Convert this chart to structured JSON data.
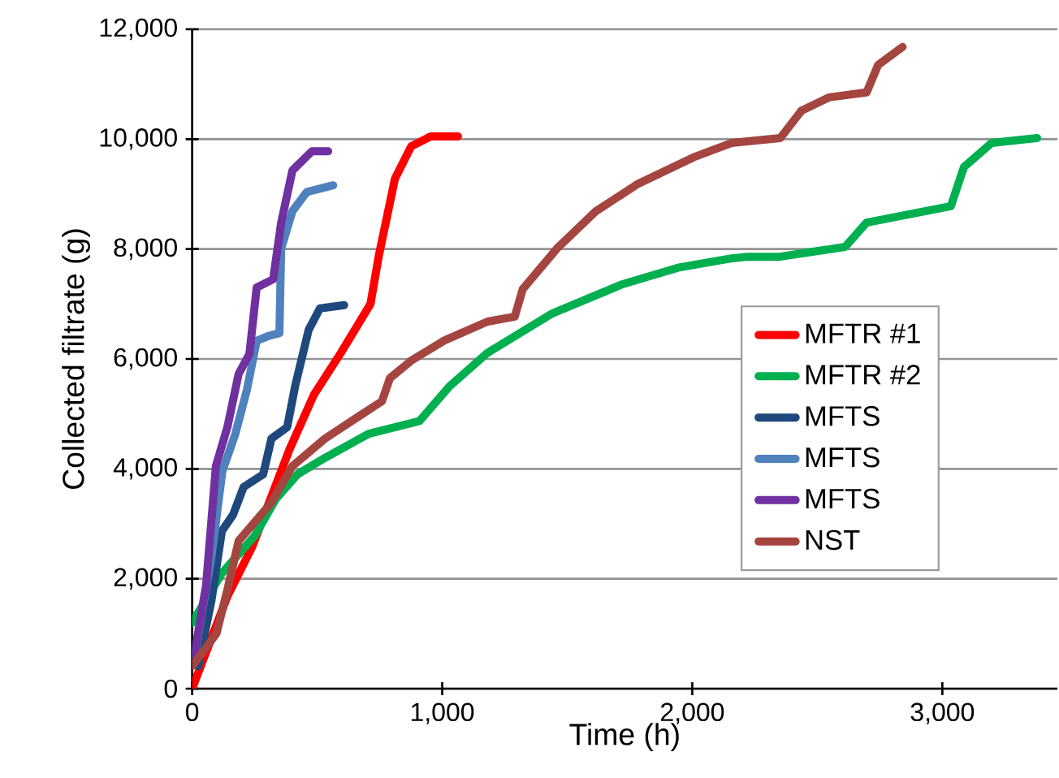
{
  "chart_data": {
    "type": "line",
    "xlabel": "Time (h)",
    "ylabel": "Collected filtrate (g)",
    "xlim": [
      0,
      3460
    ],
    "ylim": [
      0,
      12000
    ],
    "xticks": [
      {
        "value": 0,
        "label": "0"
      },
      {
        "value": 1000,
        "label": "1,000"
      },
      {
        "value": 2000,
        "label": "2,000"
      },
      {
        "value": 3000,
        "label": "3,000"
      }
    ],
    "yticks": [
      {
        "value": 0,
        "label": "0"
      },
      {
        "value": 2000,
        "label": "2,000"
      },
      {
        "value": 4000,
        "label": "4,000"
      },
      {
        "value": 6000,
        "label": "6,000"
      },
      {
        "value": 8000,
        "label": "8,000"
      },
      {
        "value": 10000,
        "label": "10,000"
      },
      {
        "value": 12000,
        "label": "12,000"
      }
    ],
    "grid": "y",
    "legend": "right",
    "marker": "none",
    "line_style": "solid",
    "series": [
      {
        "name": "MFTR #1",
        "color": "#ff0000",
        "x": [
          0,
          141,
          239,
          389,
          487,
          596,
          713,
          747,
          811,
          876,
          954,
          1063
        ],
        "values": [
          0,
          1680,
          2570,
          4350,
          5350,
          6120,
          7000,
          7890,
          9280,
          9870,
          10050,
          10050
        ]
      },
      {
        "name": "MFTR #2",
        "color": "#00b050",
        "x": [
          0,
          119,
          250,
          336,
          421,
          531,
          706,
          909,
          1029,
          1181,
          1441,
          1721,
          1942,
          2157,
          2220,
          2350,
          2611,
          2697,
          3034,
          3086,
          3197,
          3379
        ],
        "values": [
          1200,
          2100,
          2780,
          3460,
          3900,
          4200,
          4640,
          4870,
          5500,
          6110,
          6830,
          7360,
          7660,
          7830,
          7860,
          7860,
          8040,
          8480,
          8780,
          9490,
          9930,
          10020
        ]
      },
      {
        "name": "MFTS",
        "color": "#1f497d",
        "x": [
          24,
          77,
          119,
          163,
          206,
          284,
          317,
          380,
          413,
          466,
          511,
          608
        ],
        "values": [
          410,
          1600,
          2870,
          3160,
          3670,
          3900,
          4550,
          4760,
          5530,
          6530,
          6920,
          6980
        ]
      },
      {
        "name": "MFTS",
        "color": "#4f81bd",
        "x": [
          11,
          77,
          121,
          173,
          219,
          258,
          306,
          349,
          356,
          401,
          459,
          564
        ],
        "values": [
          620,
          2390,
          3960,
          4640,
          5440,
          6330,
          6420,
          6470,
          8010,
          8690,
          9040,
          9160
        ]
      },
      {
        "name": "MFTS",
        "color": "#7030a0",
        "x": [
          5,
          56,
          95,
          141,
          186,
          229,
          258,
          324,
          356,
          401,
          479,
          544
        ],
        "values": [
          500,
          1890,
          4050,
          4760,
          5730,
          6090,
          7300,
          7450,
          8480,
          9430,
          9780,
          9780
        ]
      },
      {
        "name": "NST",
        "color": "#a54540",
        "x": [
          0,
          97,
          141,
          186,
          314,
          401,
          531,
          661,
          759,
          791,
          876,
          1006,
          1181,
          1290,
          1322,
          1459,
          1615,
          1784,
          2005,
          2157,
          2352,
          2437,
          2547,
          2697,
          2743,
          2841
        ],
        "values": [
          410,
          1000,
          1800,
          2690,
          3370,
          4050,
          4550,
          4940,
          5230,
          5650,
          5970,
          6330,
          6680,
          6770,
          7270,
          8010,
          8690,
          9190,
          9670,
          9930,
          10020,
          10520,
          10760,
          10850,
          11350,
          11680
        ]
      }
    ]
  }
}
